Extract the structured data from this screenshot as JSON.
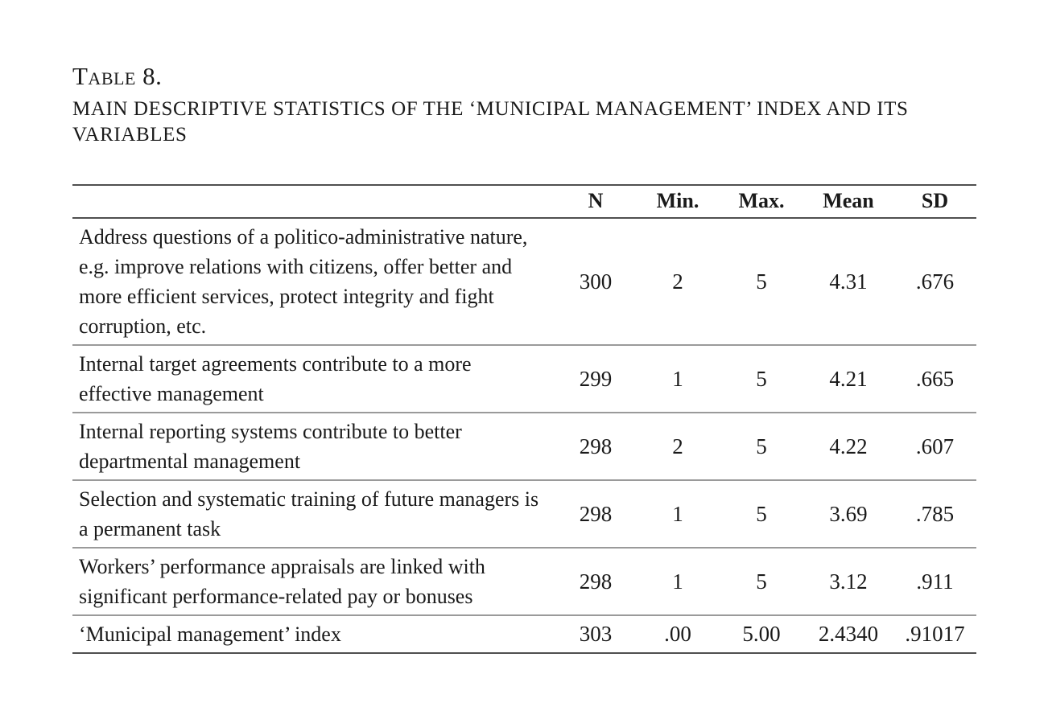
{
  "title": "Table 8.",
  "subtitle": "main descriptive statistics of the ‘municipal management’ index and its variables",
  "colors": {
    "background": "#ffffff",
    "text": "#1a1a1a",
    "rule_dark": "#4f4f4f",
    "rule_light": "#9a9a9a"
  },
  "table": {
    "columns": [
      "",
      "N",
      "Min.",
      "Max.",
      "Mean",
      "SD"
    ],
    "rows": [
      {
        "label": "Address questions of a politico-administrative nature, e.g. improve relations with citizens, offer better and more efficient services, protect integrity and fight corruption, etc.",
        "n": "300",
        "min": "2",
        "max": "5",
        "mean": "4.31",
        "sd": ".676"
      },
      {
        "label": "Internal target agreements contribute to a more effective management",
        "n": "299",
        "min": "1",
        "max": "5",
        "mean": "4.21",
        "sd": ".665"
      },
      {
        "label": "Internal reporting systems contribute to better departmental management",
        "n": "298",
        "min": "2",
        "max": "5",
        "mean": "4.22",
        "sd": ".607"
      },
      {
        "label": "Selection and systematic training of future managers is a permanent task",
        "n": "298",
        "min": "1",
        "max": "5",
        "mean": "3.69",
        "sd": ".785"
      },
      {
        "label": "Workers’ performance appraisals are linked with significant performance-related pay or bonuses",
        "n": "298",
        "min": "1",
        "max": "5",
        "mean": "3.12",
        "sd": ".911"
      },
      {
        "label": "‘Municipal management’ index",
        "n": "303",
        "min": ".00",
        "max": "5.00",
        "mean": "2.4340",
        "sd": ".91017"
      }
    ]
  }
}
